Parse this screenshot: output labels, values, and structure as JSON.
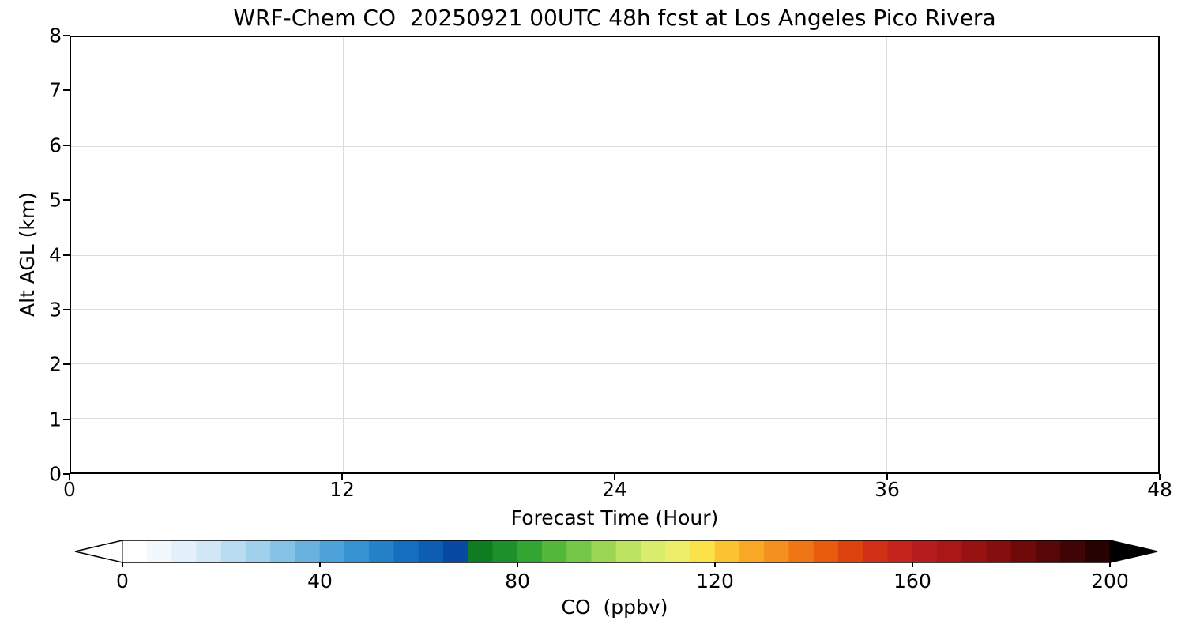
{
  "chart_data": {
    "type": "heatmap",
    "title": "WRF-Chem CO  20250921 00UTC 48h fcst at Los Angeles Pico Rivera",
    "xlabel": "Forecast Time (Hour)",
    "ylabel": "Alt AGL (km)",
    "xlim": [
      0,
      48
    ],
    "ylim": [
      0,
      8
    ],
    "xticks": [
      0,
      12,
      24,
      36,
      48
    ],
    "yticks": [
      0,
      1,
      2,
      3,
      4,
      5,
      6,
      7,
      8
    ],
    "grid": true,
    "series": [],
    "colorbar": {
      "label": "CO  (ppbv)",
      "min": 0,
      "max": 200,
      "ticks": [
        0,
        40,
        80,
        120,
        160,
        200
      ],
      "extend": "both",
      "under_color": "#ffffff",
      "over_color": "#000000",
      "level_step": 5,
      "level_colors": [
        "#ffffff",
        "#f2f8fc",
        "#e3f0f9",
        "#d0e7f5",
        "#badcf1",
        "#a1d0ec",
        "#85c2e6",
        "#68b2df",
        "#4da2d9",
        "#3692d1",
        "#2481c8",
        "#166fbe",
        "#0d5db2",
        "#084aa3",
        "#0f7c22",
        "#1e9029",
        "#32a532",
        "#52b83c",
        "#75c847",
        "#9ad654",
        "#bde363",
        "#daec6c",
        "#efee6b",
        "#fbe14a",
        "#fcc231",
        "#f8a825",
        "#f4901d",
        "#ef7614",
        "#e85c0e",
        "#dd430f",
        "#d03016",
        "#c4241c",
        "#b81d1d",
        "#a91717",
        "#981212",
        "#850e0e",
        "#6f0a0a",
        "#580707",
        "#400404",
        "#270202"
      ]
    }
  }
}
